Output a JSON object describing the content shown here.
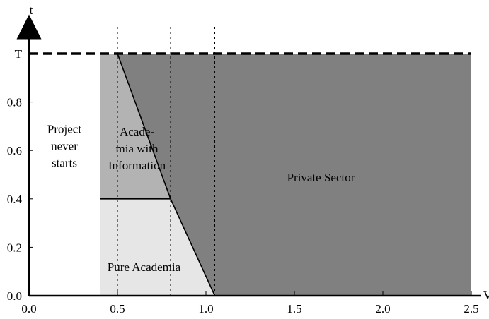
{
  "chart_data": {
    "type": "area",
    "xlabel": "V",
    "ylabel": "t",
    "xlim": [
      0.0,
      2.5
    ],
    "ylim": [
      0.0,
      1.0
    ],
    "x_ticks": [
      {
        "value": 0.0,
        "label": "0.0"
      },
      {
        "value": 0.5,
        "label": "0.5"
      },
      {
        "value": 1.0,
        "label": "1.0"
      },
      {
        "value": 1.5,
        "label": "1.5"
      },
      {
        "value": 2.0,
        "label": "2.0"
      },
      {
        "value": 2.5,
        "label": "2.5"
      }
    ],
    "y_ticks": [
      {
        "value": 0.0,
        "label": "0.0"
      },
      {
        "value": 0.2,
        "label": "0.2"
      },
      {
        "value": 0.4,
        "label": "0.4"
      },
      {
        "value": 0.6,
        "label": "0.6"
      },
      {
        "value": 0.8,
        "label": "0.8"
      },
      {
        "value": 1.0,
        "label": "T"
      }
    ],
    "reference_lines": {
      "horizontal_dashed_at_t": 1.0,
      "vertical_dotted_at_v": [
        0.5,
        0.8,
        1.05
      ]
    },
    "regions": [
      {
        "name": "Project never starts",
        "label_lines": [
          "Project",
          "never",
          "starts"
        ],
        "color": "#ffffff",
        "polygon": [
          [
            0,
            0
          ],
          [
            0.4,
            0
          ],
          [
            0.4,
            1.0
          ],
          [
            0,
            1.0
          ]
        ],
        "label_at": [
          0.2,
          0.62
        ]
      },
      {
        "name": "Pure Academia",
        "label_lines": [
          "Pure Academia"
        ],
        "color": "#e6e6e6",
        "polygon": [
          [
            0.4,
            0
          ],
          [
            1.05,
            0
          ],
          [
            0.8,
            0.4
          ],
          [
            0.4,
            0.4
          ]
        ],
        "label_at": [
          0.65,
          0.12
        ]
      },
      {
        "name": "Academia with Information",
        "label_lines": [
          "Acade-",
          "mia with",
          "Information"
        ],
        "color": "#b3b3b3",
        "polygon": [
          [
            0.4,
            0.4
          ],
          [
            0.8,
            0.4
          ],
          [
            0.5,
            1.0
          ],
          [
            0.4,
            1.0
          ]
        ],
        "label_at": [
          0.61,
          0.61
        ]
      },
      {
        "name": "Private Sector",
        "label_lines": [
          "Private Sector"
        ],
        "color": "#808080",
        "polygon": [
          [
            1.05,
            0
          ],
          [
            2.5,
            0
          ],
          [
            2.5,
            1.0
          ],
          [
            0.5,
            1.0
          ],
          [
            0.8,
            0.4
          ]
        ],
        "label_at": [
          1.65,
          0.49
        ]
      }
    ],
    "boundary_lines": [
      {
        "name": "upper-boundary",
        "points": [
          [
            0.5,
            1.0
          ],
          [
            0.8,
            0.4
          ],
          [
            1.05,
            0.0
          ]
        ]
      },
      {
        "name": "information-threshold",
        "points": [
          [
            0.4,
            0.4
          ],
          [
            0.8,
            0.4
          ]
        ]
      }
    ],
    "grid": false,
    "legend": "none"
  }
}
